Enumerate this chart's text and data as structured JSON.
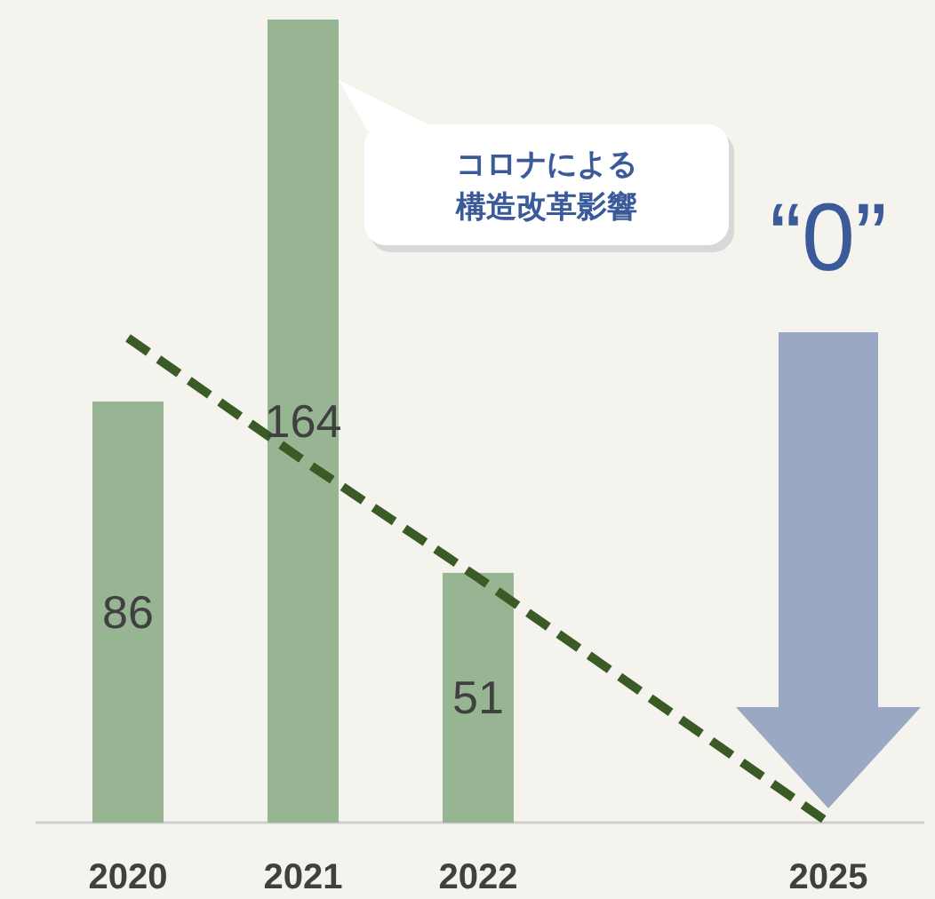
{
  "chart_data": {
    "type": "bar",
    "categories": [
      "2020",
      "2021",
      "2022",
      null,
      "2025"
    ],
    "grid": false,
    "series": [
      {
        "color": "#97b593",
        "values": [
          86,
          164,
          51,
          null,
          null
        ],
        "value_labels": [
          "86",
          "164",
          "51",
          null,
          null
        ]
      },
      {
        "type": "line",
        "color": "#3a5a26",
        "line_style": "dashed",
        "values": [
          99,
          74,
          50,
          25,
          0
        ]
      }
    ],
    "annotations": [
      "コロナによる構造改革影響",
      "“0”"
    ]
  }
}
